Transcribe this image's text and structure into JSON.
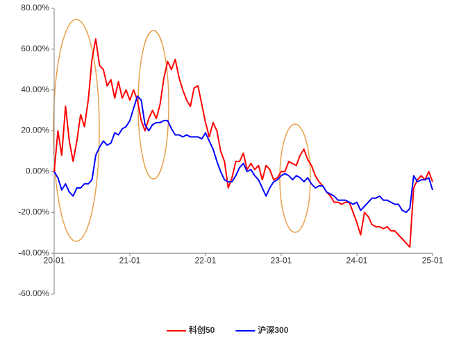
{
  "chart_data": {
    "type": "line",
    "x": [
      2020,
      2020.05,
      2020.1,
      2020.15,
      2020.2,
      2020.25,
      2020.3,
      2020.35,
      2020.4,
      2020.45,
      2020.5,
      2020.55,
      2020.6,
      2020.65,
      2020.7,
      2020.75,
      2020.8,
      2020.85,
      2020.9,
      2020.95,
      2021,
      2021.05,
      2021.1,
      2021.15,
      2021.2,
      2021.25,
      2021.3,
      2021.35,
      2021.4,
      2021.45,
      2021.5,
      2021.55,
      2021.6,
      2021.65,
      2021.7,
      2021.75,
      2021.8,
      2021.85,
      2021.9,
      2021.95,
      2022,
      2022.05,
      2022.1,
      2022.15,
      2022.2,
      2022.25,
      2022.3,
      2022.35,
      2022.4,
      2022.45,
      2022.5,
      2022.55,
      2022.6,
      2022.65,
      2022.7,
      2022.75,
      2022.8,
      2022.85,
      2022.9,
      2022.95,
      2023,
      2023.05,
      2023.1,
      2023.15,
      2023.2,
      2023.25,
      2023.3,
      2023.35,
      2023.4,
      2023.45,
      2023.5,
      2023.55,
      2023.6,
      2023.65,
      2023.7,
      2023.75,
      2023.8,
      2023.85,
      2023.9,
      2023.95,
      2024,
      2024.05,
      2024.1,
      2024.15,
      2024.2,
      2024.25,
      2024.3,
      2024.35,
      2024.4,
      2024.45,
      2024.5,
      2024.55,
      2024.6,
      2024.65,
      2024.7,
      2024.75,
      2024.8,
      2024.85,
      2024.9,
      2024.95,
      2025
    ],
    "series": [
      {
        "name": "科创50",
        "color": "#ff0000",
        "values": [
          0,
          20,
          8,
          32,
          15,
          5,
          15,
          28,
          22,
          35,
          55,
          65,
          52,
          50,
          42,
          45,
          36,
          44,
          36,
          40,
          35,
          40,
          35,
          25,
          20,
          26,
          30,
          26,
          33,
          46,
          54,
          50,
          55,
          46,
          40,
          35,
          32,
          41,
          42,
          33,
          24,
          17,
          24,
          20,
          10,
          5,
          -8,
          -3,
          5,
          5,
          9,
          1,
          4,
          1,
          3,
          -4,
          3,
          1,
          -4,
          -3,
          0,
          0,
          5,
          4,
          3,
          8,
          11,
          6,
          3,
          -2,
          -5,
          -7,
          -10,
          -12,
          -15,
          -15,
          -16,
          -15,
          -15,
          -20,
          -25,
          -31,
          -20,
          -22,
          -26,
          -27,
          -27,
          -28,
          -27,
          -29,
          -29,
          -31,
          -33,
          -35,
          -37,
          -8,
          -4,
          -2,
          -4,
          0,
          -5
        ]
      },
      {
        "name": "沪深300",
        "color": "#0000ff",
        "values": [
          0,
          -3,
          -9,
          -6,
          -10,
          -12,
          -8,
          -8,
          -6,
          -6,
          -4,
          8,
          12,
          15,
          13,
          14,
          19,
          18,
          21,
          22,
          25,
          31,
          37,
          35,
          23,
          20,
          23,
          24,
          24,
          25,
          25,
          21,
          18,
          18,
          17,
          18,
          17,
          17,
          17,
          16,
          19,
          15,
          11,
          5,
          0,
          -4,
          -5,
          -5,
          -2,
          2,
          4,
          0,
          1,
          -2,
          -4,
          -8,
          -12,
          -8,
          -5,
          -4,
          -2,
          -1,
          -2,
          -4,
          -2,
          -3,
          -5,
          -3,
          -6,
          -8,
          -7,
          -7,
          -10,
          -11,
          -12,
          -14,
          -14,
          -14,
          -15,
          -16,
          -15,
          -19,
          -17,
          -15,
          -13,
          -13,
          -12,
          -14,
          -14,
          -15,
          -16,
          -16,
          -19,
          -20,
          -18,
          -2,
          -5,
          -4,
          -4,
          -3,
          -9
        ]
      }
    ],
    "xlim": [
      2020,
      2025
    ],
    "xticks": [
      {
        "value": 2020,
        "label": "20-01"
      },
      {
        "value": 2021,
        "label": "21-01"
      },
      {
        "value": 2022,
        "label": "22-01"
      },
      {
        "value": 2023,
        "label": "23-01"
      },
      {
        "value": 2024,
        "label": "24-01"
      },
      {
        "value": 2025,
        "label": "25-01"
      }
    ],
    "ylim": [
      -60,
      80
    ],
    "yticks": [
      {
        "value": -60,
        "label": "-60.00%"
      },
      {
        "value": -40,
        "label": "-40.00%"
      },
      {
        "value": -20,
        "label": "-20.00%"
      },
      {
        "value": 0,
        "label": "0.00%"
      },
      {
        "value": 20,
        "label": "20.00%"
      },
      {
        "value": 40,
        "label": "40.00%"
      },
      {
        "value": 60,
        "label": "60.00%"
      },
      {
        "value": 80,
        "label": "80.00%"
      }
    ],
    "x_axis_crosses": -40,
    "grid": false,
    "legend": "bottom"
  }
}
